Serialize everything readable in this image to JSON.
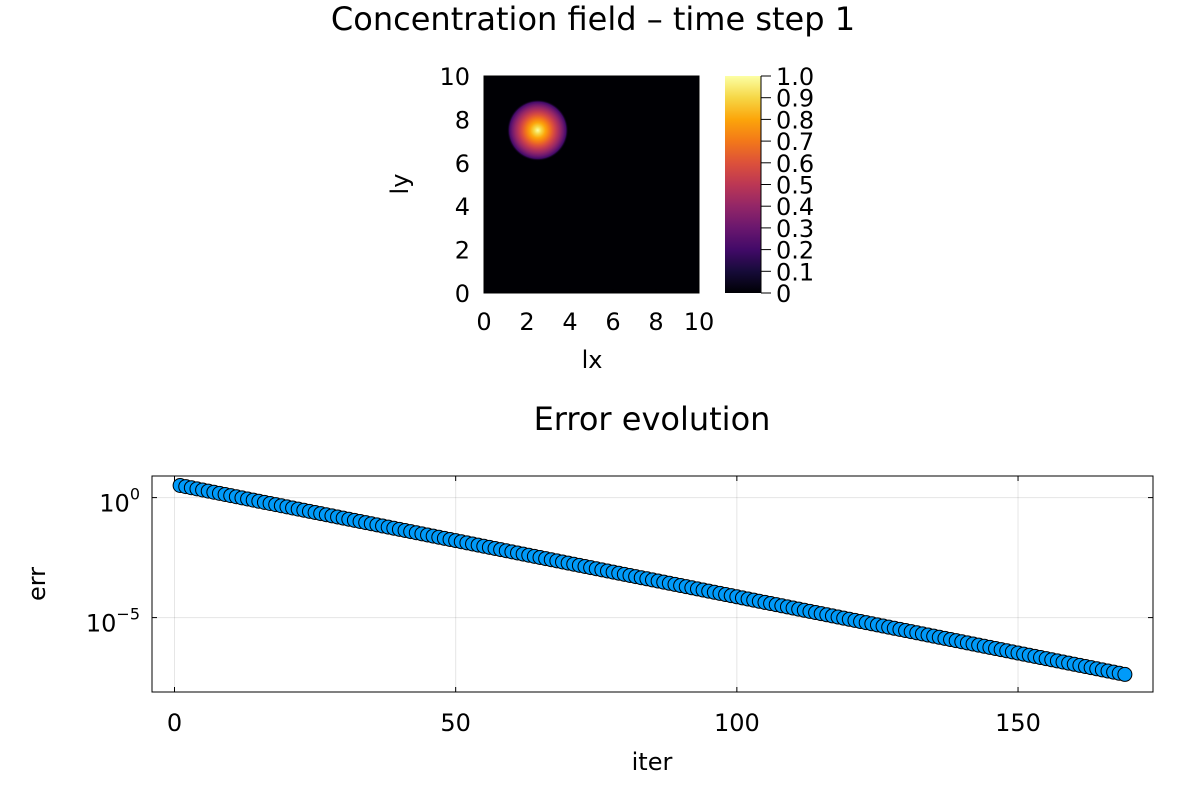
{
  "chart_data": [
    {
      "type": "heatmap",
      "title": "Concentration field – time step 1",
      "xlabel": "lx",
      "ylabel": "ly",
      "xlim": [
        0,
        10
      ],
      "ylim": [
        0,
        10
      ],
      "xticks": [
        "0",
        "2",
        "4",
        "6",
        "8",
        "10"
      ],
      "yticks": [
        "0",
        "2",
        "4",
        "6",
        "8",
        "10"
      ],
      "field": {
        "kind": "gaussian",
        "center": [
          2.5,
          7.5
        ],
        "peak": 1.0,
        "sigma": 0.55
      },
      "colormap": "inferno",
      "colorbar": {
        "range": [
          0,
          1.0
        ],
        "ticks": [
          "0",
          "0.1",
          "0.2",
          "0.3",
          "0.4",
          "0.5",
          "0.6",
          "0.7",
          "0.8",
          "0.9",
          "1.0"
        ]
      },
      "grid": false
    },
    {
      "type": "scatter",
      "title": "Error evolution",
      "xlabel": "iter",
      "ylabel": "err",
      "xlim": [
        -4,
        174
      ],
      "ylog": true,
      "ylim_log10": [
        -8.1,
        0.9
      ],
      "xticks": [
        "0",
        "50",
        "100",
        "150"
      ],
      "xtick_values": [
        0,
        50,
        100,
        150
      ],
      "yticks": [
        {
          "base": "10",
          "exp": "0",
          "value": 1
        },
        {
          "base": "10",
          "exp": "−5",
          "value": 1e-05
        }
      ],
      "series": [
        {
          "marker": "circle",
          "color": "#009af9",
          "x_start": 1,
          "x_end": 169,
          "y_start": 3.2,
          "y_end": 4.3e-08
        }
      ],
      "grid": true,
      "legend": "none"
    }
  ]
}
